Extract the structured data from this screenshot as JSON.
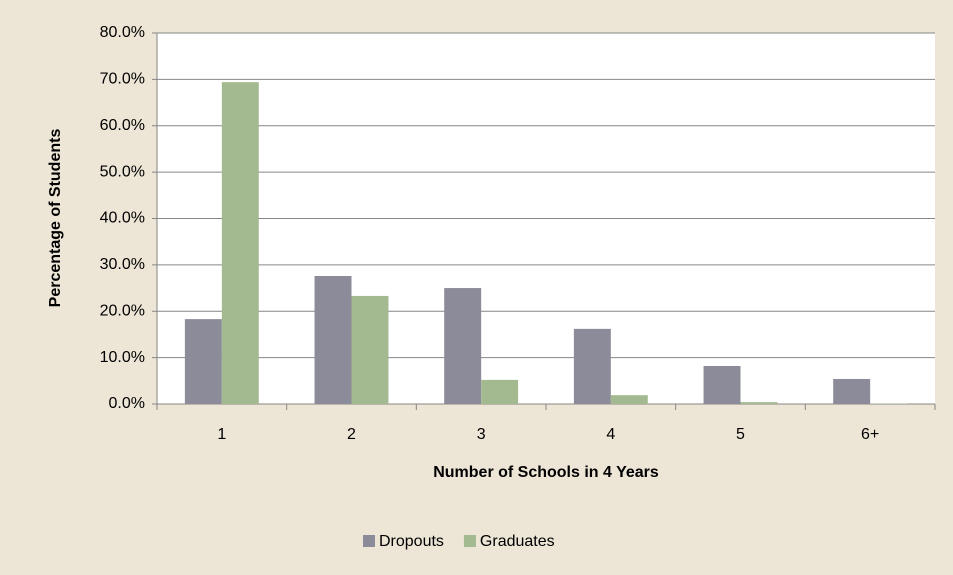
{
  "chart_data": {
    "type": "bar",
    "x_label": "Number of Schools in 4 Years",
    "y_label": "Percentage of Students",
    "categories": [
      "1",
      "2",
      "3",
      "4",
      "5",
      "6+"
    ],
    "series": [
      {
        "name": "Dropouts",
        "color": "#8b8b99",
        "values": [
          18.3,
          27.6,
          25.0,
          16.2,
          8.2,
          5.4
        ]
      },
      {
        "name": "Graduates",
        "color": "#a3b98f",
        "values": [
          69.4,
          23.3,
          5.2,
          1.9,
          0.4,
          0.1
        ]
      }
    ],
    "ylim": [
      0,
      80
    ],
    "yticks": [
      {
        "value": 0,
        "label": "0.0%"
      },
      {
        "value": 10,
        "label": "10.0%"
      },
      {
        "value": 20,
        "label": "20.0%"
      },
      {
        "value": 30,
        "label": "30.0%"
      },
      {
        "value": 40,
        "label": "40.0%"
      },
      {
        "value": 50,
        "label": "50.0%"
      },
      {
        "value": 60,
        "label": "60.0%"
      },
      {
        "value": 70,
        "label": "70.0%"
      },
      {
        "value": 80,
        "label": "80.0%"
      }
    ],
    "grid": true,
    "legend": "bottom"
  }
}
